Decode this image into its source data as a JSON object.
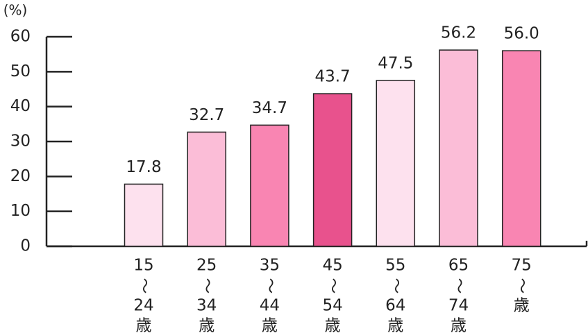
{
  "chart_data": {
    "type": "bar",
    "unit_label": "(%)",
    "categories": [
      [
        "15",
        "〜",
        "24",
        "歳"
      ],
      [
        "25",
        "〜",
        "34",
        "歳"
      ],
      [
        "35",
        "〜",
        "44",
        "歳"
      ],
      [
        "45",
        "〜",
        "54",
        "歳"
      ],
      [
        "55",
        "〜",
        "64",
        "歳"
      ],
      [
        "65",
        "〜",
        "74",
        "歳"
      ],
      [
        "75",
        "〜",
        "歳"
      ]
    ],
    "values": [
      17.8,
      32.7,
      34.7,
      43.7,
      47.5,
      56.2,
      56.0
    ],
    "value_labels": [
      "17.8",
      "32.7",
      "34.7",
      "43.7",
      "47.5",
      "56.2",
      "56.0"
    ],
    "colors": [
      "#fde1ee",
      "#fbbdd7",
      "#f985b2",
      "#e8528d",
      "#fde1ee",
      "#fbbdd7",
      "#f985b2"
    ],
    "ylim": [
      0,
      60
    ],
    "yticks": [
      0,
      10,
      20,
      30,
      40,
      50,
      60
    ]
  }
}
